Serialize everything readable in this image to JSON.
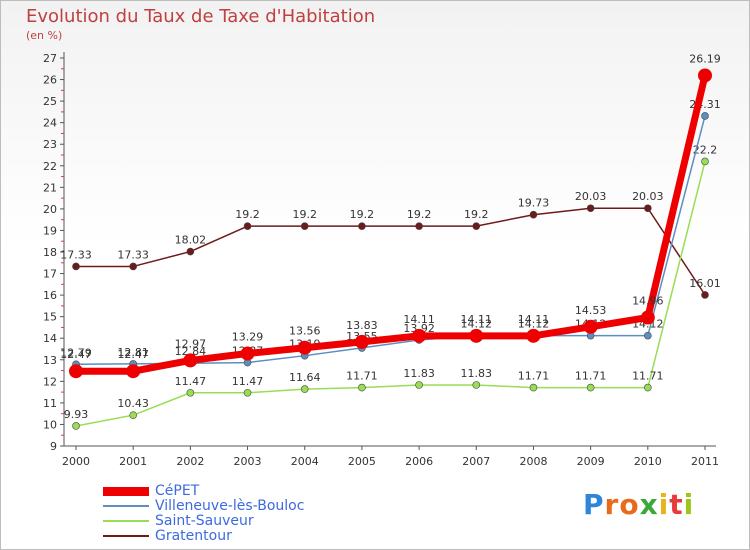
{
  "title": "Evolution du Taux de Taxe d'Habitation",
  "unit_note": "(en %)",
  "brand": {
    "letters": [
      "P",
      "r",
      "o",
      "x",
      "i",
      "t",
      "i"
    ],
    "colors": [
      "#2e86d8",
      "#e86a1a",
      "#e86a1a",
      "#3aa83a",
      "#e8b21a",
      "#e83a3a",
      "#9ac81a"
    ]
  },
  "chart_data": {
    "type": "line",
    "x": [
      "2000",
      "2001",
      "2002",
      "2003",
      "2004",
      "2005",
      "2006",
      "2007",
      "2008",
      "2009",
      "2010",
      "2011"
    ],
    "ylim": [
      9,
      27
    ],
    "yticks": [
      "9",
      "10",
      "11",
      "12",
      "13",
      "14",
      "15",
      "16",
      "17",
      "18",
      "19",
      "20",
      "21",
      "22",
      "23",
      "24",
      "25",
      "26",
      "27"
    ],
    "grid": false,
    "legend": "bottom-left",
    "series": [
      {
        "name": "Gratentour",
        "color": "#6e1a1a",
        "values": [
          17.33,
          17.33,
          18.02,
          19.2,
          19.2,
          19.2,
          19.2,
          19.2,
          19.73,
          20.03,
          20.03,
          16.01
        ],
        "labels": [
          "17.33",
          "17.33",
          "18.02",
          "19.2",
          "19.2",
          "19.2",
          "19.2",
          "19.2",
          "19.73",
          "20.03",
          "20.03",
          "16.01"
        ]
      },
      {
        "name": "Saint-Sauveur",
        "color": "#99dd55",
        "values": [
          9.93,
          10.43,
          11.47,
          11.47,
          11.64,
          11.71,
          11.83,
          11.83,
          11.71,
          11.71,
          11.71,
          22.2
        ],
        "labels": [
          "9.93",
          "10.43",
          "11.47",
          "11.47",
          "11.64",
          "11.71",
          "11.83",
          "11.83",
          "11.71",
          "11.71",
          "11.71",
          "22.2"
        ]
      },
      {
        "name": "Villeneuve-lès-Bouloc",
        "color": "#5b8fc0",
        "values": [
          12.79,
          12.81,
          12.84,
          12.87,
          13.19,
          13.55,
          13.92,
          14.12,
          14.12,
          14.12,
          14.12,
          24.31
        ],
        "labels": [
          "12.79",
          "12.81",
          "12.84",
          "12.87",
          "13.19",
          "13.55",
          "13.92",
          "14.12",
          "14.12",
          "14.12",
          "14.12",
          "24.31"
        ]
      },
      {
        "name": "CéPET",
        "color": "#ee0000",
        "values": [
          12.47,
          12.47,
          12.97,
          13.29,
          13.56,
          13.83,
          14.11,
          14.11,
          14.11,
          14.53,
          14.96,
          26.19
        ],
        "labels": [
          "12.47",
          "12.47",
          "12.97",
          "13.29",
          "13.56",
          "13.83",
          "14.11",
          "14.11",
          "14.11",
          "14.53",
          "14.96",
          "26.19"
        ]
      }
    ],
    "legend_order": [
      "CéPET",
      "Villeneuve-lès-Bouloc",
      "Saint-Sauveur",
      "Gratentour"
    ]
  }
}
